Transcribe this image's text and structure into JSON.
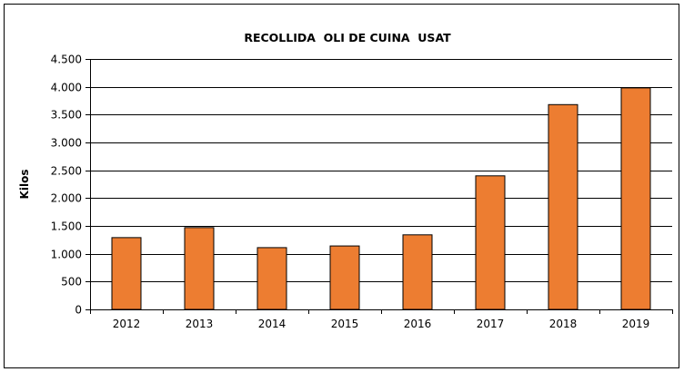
{
  "chart_data": {
    "type": "bar",
    "title": "RECOLLIDA  OLI DE CUINA  USAT",
    "xlabel": "",
    "ylabel": "Kilos",
    "categories": [
      "2012",
      "2013",
      "2014",
      "2015",
      "2016",
      "2017",
      "2018",
      "2019"
    ],
    "values": [
      1290,
      1470,
      1110,
      1140,
      1340,
      2400,
      3680,
      3980
    ],
    "ylim": [
      0,
      4500
    ],
    "yticks": [
      0,
      500,
      1000,
      1500,
      2000,
      2500,
      3000,
      3500,
      4000,
      4500
    ],
    "ytick_labels": [
      "0",
      "500",
      "1.000",
      "1.500",
      "2.000",
      "2.500",
      "3.000",
      "3.500",
      "4.000",
      "4.500"
    ],
    "grid": true,
    "legend": "none",
    "bar_color": "#ED7D31"
  }
}
